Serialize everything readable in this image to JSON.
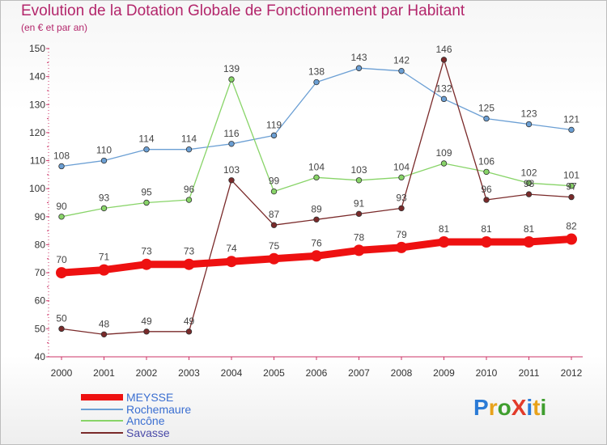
{
  "title": "Evolution de la Dotation Globale de Fonctionnement par Habitant",
  "subtitle": "(en € et par an)",
  "logo": {
    "text": "ProXiti",
    "letter_colors": [
      "#2b7bd6",
      "#e8a21b",
      "#3f9e2e",
      "#e23b2a",
      "#2b7bd6",
      "#e8a21b",
      "#3f9e2e"
    ]
  },
  "chart_data": {
    "type": "line",
    "x": [
      2000,
      2001,
      2002,
      2003,
      2004,
      2005,
      2006,
      2007,
      2008,
      2009,
      2010,
      2011,
      2012
    ],
    "ylim": [
      40,
      150
    ],
    "y_ticks": [
      40,
      50,
      60,
      70,
      80,
      90,
      100,
      110,
      120,
      130,
      140,
      150
    ],
    "grid": false,
    "legend_position": "bottom-left",
    "series": [
      {
        "name": "MEYSSE",
        "color": "#ee1111",
        "emphasis": true,
        "values": [
          70,
          71,
          73,
          73,
          74,
          75,
          76,
          78,
          79,
          81,
          81,
          81,
          82
        ]
      },
      {
        "name": "Rochemaure",
        "color": "#6b9fd4",
        "emphasis": false,
        "values": [
          108,
          110,
          114,
          114,
          116,
          119,
          138,
          143,
          142,
          132,
          125,
          123,
          121
        ]
      },
      {
        "name": "Ancône",
        "color": "#88d468",
        "emphasis": false,
        "values": [
          90,
          93,
          95,
          96,
          139,
          99,
          104,
          103,
          104,
          109,
          106,
          102,
          101
        ]
      },
      {
        "name": "Savasse",
        "color": "#7a2a2a",
        "emphasis": false,
        "values": [
          50,
          48,
          49,
          49,
          103,
          87,
          89,
          91,
          93,
          146,
          96,
          98,
          97
        ]
      }
    ]
  },
  "colors": {
    "axis": "#cc3366",
    "tick_text": "#333333",
    "value_label": "#444444",
    "title": "#b3266b"
  }
}
